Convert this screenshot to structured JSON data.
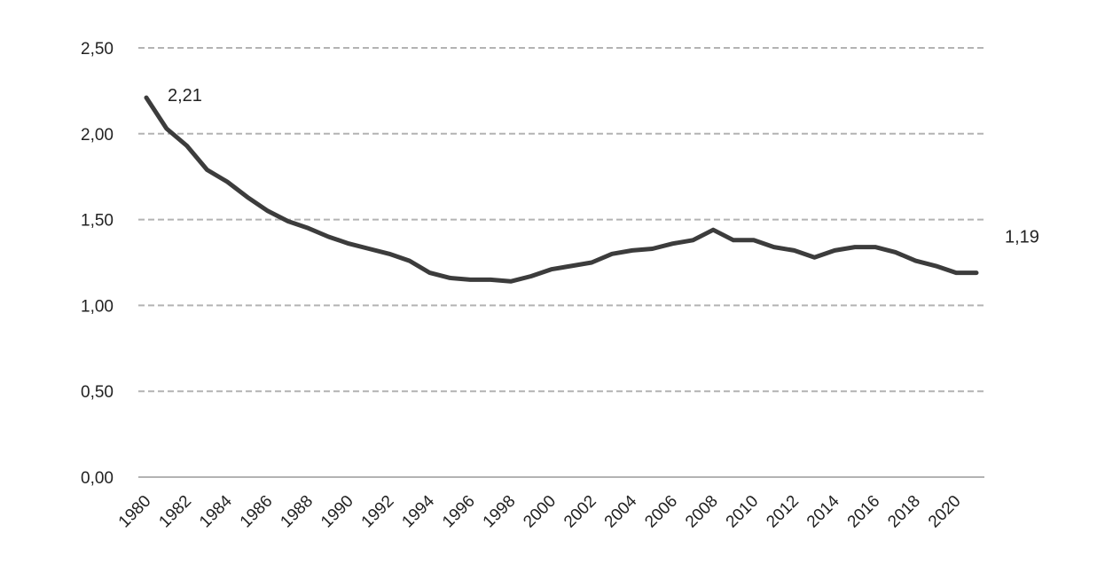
{
  "chart_data": {
    "type": "line",
    "title": "",
    "xlabel": "",
    "ylabel": "",
    "ylim": [
      0,
      2.5
    ],
    "yticks": [
      "0,00",
      "0,50",
      "1,00",
      "1,50",
      "2,00",
      "2,50"
    ],
    "xtick_labels": [
      "1980",
      "1982",
      "1984",
      "1986",
      "1988",
      "1990",
      "1992",
      "1994",
      "1996",
      "1998",
      "2000",
      "2002",
      "2004",
      "2006",
      "2008",
      "2010",
      "2012",
      "2014",
      "2016",
      "2018",
      "2020"
    ],
    "grid": true,
    "legend": "none",
    "x": [
      1980,
      1981,
      1982,
      1983,
      1984,
      1985,
      1986,
      1987,
      1988,
      1989,
      1990,
      1991,
      1992,
      1993,
      1994,
      1995,
      1996,
      1997,
      1998,
      1999,
      2000,
      2001,
      2002,
      2003,
      2004,
      2005,
      2006,
      2007,
      2008,
      2009,
      2010,
      2011,
      2012,
      2013,
      2014,
      2015,
      2016,
      2017,
      2018,
      2019,
      2020,
      2021
    ],
    "series": [
      {
        "values": [
          2.21,
          2.03,
          1.93,
          1.79,
          1.72,
          1.63,
          1.55,
          1.49,
          1.45,
          1.4,
          1.36,
          1.33,
          1.3,
          1.26,
          1.19,
          1.16,
          1.15,
          1.15,
          1.14,
          1.17,
          1.21,
          1.23,
          1.25,
          1.3,
          1.32,
          1.33,
          1.36,
          1.38,
          1.44,
          1.38,
          1.38,
          1.34,
          1.32,
          1.28,
          1.32,
          1.34,
          1.34,
          1.31,
          1.26,
          1.23,
          1.19,
          1.19
        ]
      }
    ],
    "annotations": [
      {
        "text": "2,21",
        "x": 1980,
        "y": 2.21
      },
      {
        "text": "1,19",
        "x": 2021,
        "y": 1.19
      }
    ],
    "colors": {
      "line": "#3c3c3c",
      "grid": "#b3b3b3",
      "text": "#222222"
    }
  }
}
